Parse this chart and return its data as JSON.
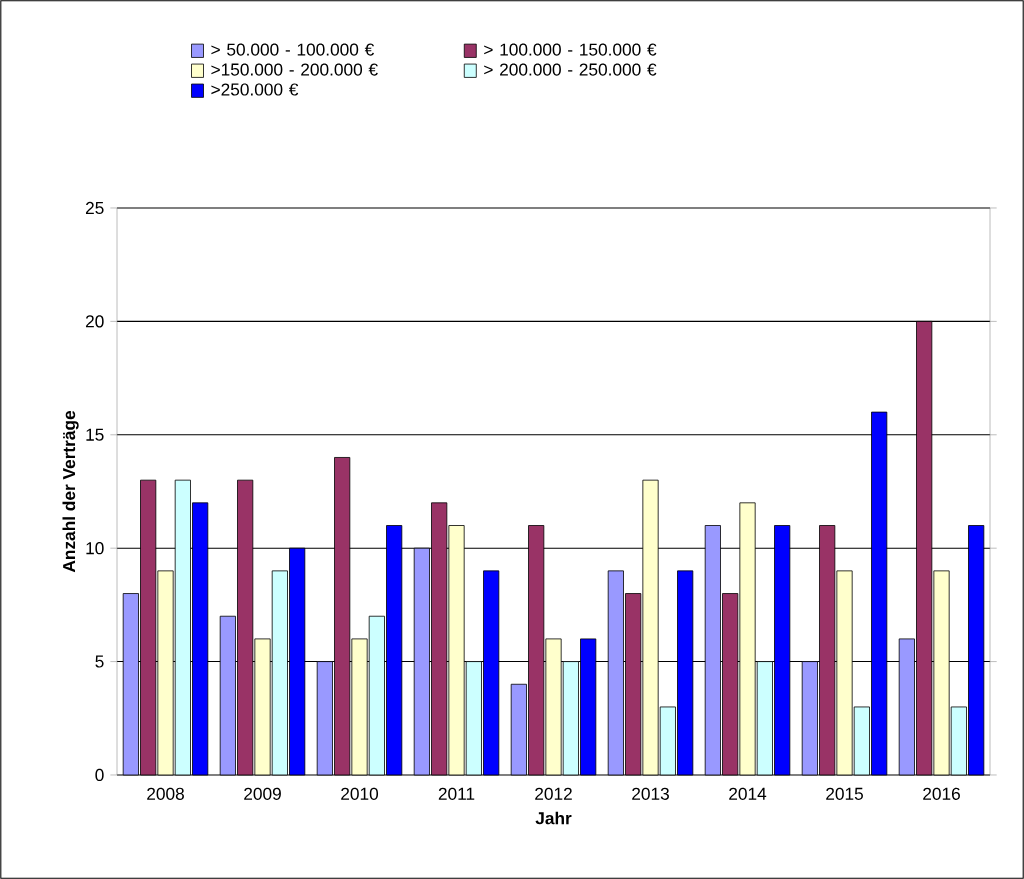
{
  "chart_data": {
    "type": "bar",
    "xlabel": "Jahr",
    "ylabel": "Anzahl der Verträge",
    "categories": [
      "2008",
      "2009",
      "2010",
      "2011",
      "2012",
      "2013",
      "2014",
      "2015",
      "2016"
    ],
    "series": [
      {
        "name": "> 50.000 - 100.000 €",
        "color": "#9999ff",
        "values": [
          8,
          7,
          5,
          10,
          4,
          9,
          11,
          5,
          6
        ]
      },
      {
        "name": "> 100.000 - 150.000 €",
        "color": "#993366",
        "values": [
          13,
          13,
          14,
          12,
          11,
          8,
          8,
          11,
          20
        ]
      },
      {
        "name": ">150.000 - 200.000 €",
        "color": "#ffffcc",
        "values": [
          9,
          6,
          6,
          11,
          6,
          13,
          12,
          9,
          9
        ]
      },
      {
        "name": "> 200.000 - 250.000 €",
        "color": "#ccffff",
        "values": [
          13,
          9,
          7,
          5,
          5,
          3,
          5,
          3,
          3
        ]
      },
      {
        "name": ">250.000 €",
        "color": "#0000ff",
        "values": [
          12,
          10,
          11,
          9,
          6,
          9,
          11,
          16,
          11
        ]
      }
    ],
    "ylim": [
      0,
      25
    ],
    "yticks": [
      0,
      5,
      10,
      15,
      20,
      25
    ],
    "grid": "y",
    "legend": "top"
  }
}
